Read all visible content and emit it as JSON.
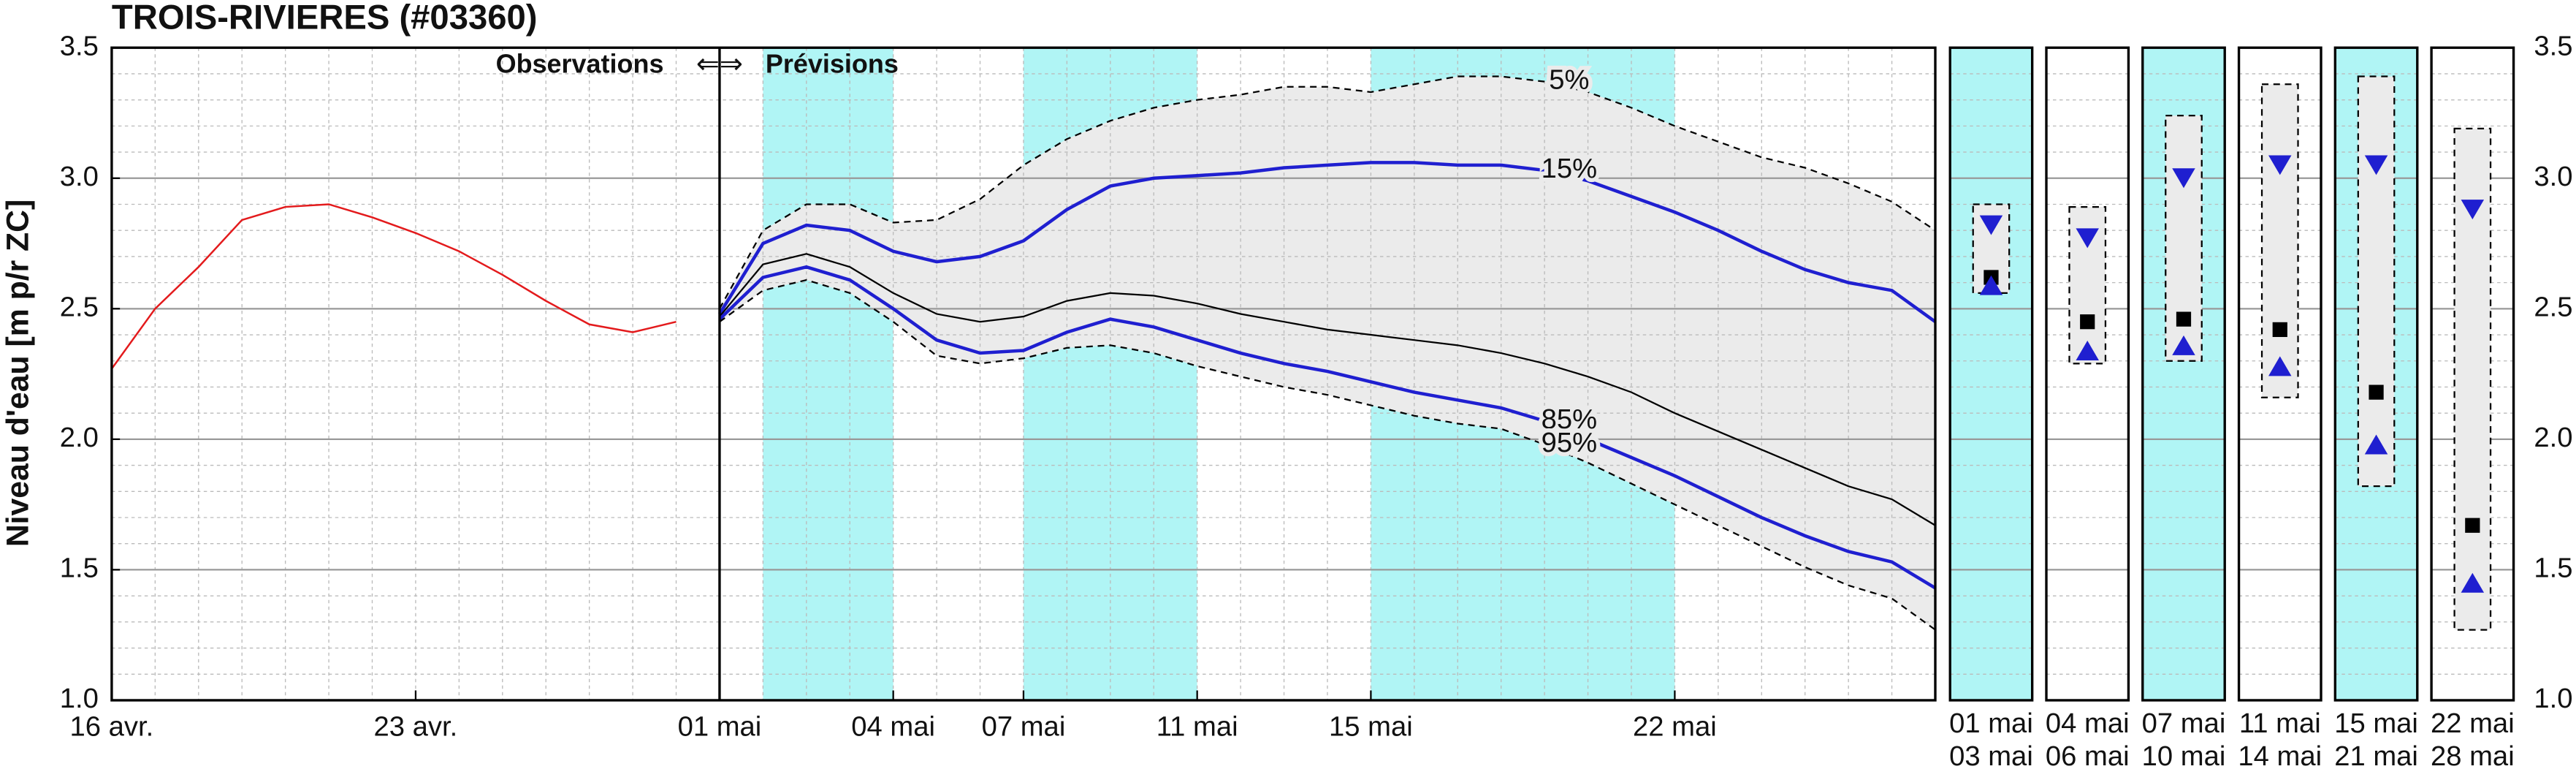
{
  "chart_data": {
    "type": "line",
    "title": "TROIS-RIVIERES (#03360)",
    "y_label": "Niveau d'eau [m p/r ZC]",
    "observations_label": "Observations",
    "arrows_label": "⇐⇒",
    "forecast_label": "Prévisions",
    "xlim": [
      0,
      42
    ],
    "xticks": [
      {
        "value": 0,
        "label": "16 avr."
      },
      {
        "value": 7,
        "label": "23 avr."
      },
      {
        "value": 14,
        "label": "01 mai"
      },
      {
        "value": 18,
        "label": "04 mai"
      },
      {
        "value": 21,
        "label": "07 mai"
      },
      {
        "value": 25,
        "label": "11 mai"
      },
      {
        "value": 29,
        "label": "15 mai"
      },
      {
        "value": 36,
        "label": "22 mai"
      }
    ],
    "ylim": [
      1.0,
      3.5
    ],
    "yticks": [
      {
        "value": 1,
        "label": "1.0"
      },
      1.5,
      {
        "value": 2,
        "label": "2.0"
      },
      2.5,
      {
        "value": 3,
        "label": "3.0"
      },
      3.5
    ],
    "grid": true,
    "forecast_start": 14,
    "shaded_color": "#b0f5f5",
    "band_color": "#ebebeb",
    "shaded_periods": [
      [
        15,
        18
      ],
      [
        21,
        25
      ],
      [
        29,
        36
      ]
    ],
    "series": [
      {
        "color": "#e31a1c",
        "dash": false,
        "x": [
          0,
          1,
          2,
          3,
          4,
          5,
          6,
          7,
          8,
          9,
          10,
          11,
          12,
          13
        ],
        "values": [
          2.27,
          2.5,
          2.66,
          2.84,
          2.89,
          2.9,
          2.85,
          2.79,
          2.72,
          2.63,
          2.53,
          2.44,
          2.41,
          2.45
        ]
      },
      {
        "name": "5%",
        "color": "#000000",
        "label_color": "#000000",
        "dash": true,
        "x": [
          14,
          15,
          16,
          17,
          18,
          19,
          20,
          21,
          22,
          23,
          24,
          25,
          26,
          27,
          28,
          29,
          30,
          31,
          32,
          33,
          34,
          35,
          36,
          37,
          38,
          39,
          40,
          41,
          42
        ],
        "values": [
          2.5,
          2.8,
          2.9,
          2.9,
          2.83,
          2.84,
          2.92,
          3.05,
          3.15,
          3.22,
          3.27,
          3.3,
          3.32,
          3.35,
          3.35,
          3.33,
          3.36,
          3.39,
          3.39,
          3.37,
          3.33,
          3.27,
          3.2,
          3.14,
          3.08,
          3.04,
          2.98,
          2.91,
          2.8
        ]
      },
      {
        "name": "15%",
        "color": "#1f1fd0",
        "label_color": "#1f1fd0",
        "dash": false,
        "x": [
          14,
          15,
          16,
          17,
          18,
          19,
          20,
          21,
          22,
          23,
          24,
          25,
          26,
          27,
          28,
          29,
          30,
          31,
          32,
          33,
          34,
          35,
          36,
          37,
          38,
          39,
          40,
          41,
          42
        ],
        "values": [
          2.48,
          2.75,
          2.82,
          2.8,
          2.72,
          2.68,
          2.7,
          2.76,
          2.88,
          2.97,
          3.0,
          3.01,
          3.02,
          3.04,
          3.05,
          3.06,
          3.06,
          3.05,
          3.05,
          3.03,
          2.99,
          2.93,
          2.87,
          2.8,
          2.72,
          2.65,
          2.6,
          2.57,
          2.45
        ]
      },
      {
        "color": "#000000",
        "dash": false,
        "x": [
          14,
          15,
          16,
          17,
          18,
          19,
          20,
          21,
          22,
          23,
          24,
          25,
          26,
          27,
          28,
          29,
          30,
          31,
          32,
          33,
          34,
          35,
          36,
          37,
          38,
          39,
          40,
          41,
          42
        ],
        "values": [
          2.47,
          2.67,
          2.71,
          2.66,
          2.56,
          2.48,
          2.45,
          2.47,
          2.53,
          2.56,
          2.55,
          2.52,
          2.48,
          2.45,
          2.42,
          2.4,
          2.38,
          2.36,
          2.33,
          2.29,
          2.24,
          2.18,
          2.1,
          2.03,
          1.96,
          1.89,
          1.82,
          1.77,
          1.67
        ]
      },
      {
        "name": "85%",
        "color": "#1f1fd0",
        "label_color": "#1f1fd0",
        "dash": false,
        "x": [
          14,
          15,
          16,
          17,
          18,
          19,
          20,
          21,
          22,
          23,
          24,
          25,
          26,
          27,
          28,
          29,
          30,
          31,
          32,
          33,
          34,
          35,
          36,
          37,
          38,
          39,
          40,
          41,
          42
        ],
        "values": [
          2.46,
          2.62,
          2.66,
          2.61,
          2.5,
          2.38,
          2.33,
          2.34,
          2.41,
          2.46,
          2.43,
          2.38,
          2.33,
          2.29,
          2.26,
          2.22,
          2.18,
          2.15,
          2.12,
          2.07,
          2.0,
          1.93,
          1.86,
          1.78,
          1.7,
          1.63,
          1.57,
          1.53,
          1.43
        ]
      },
      {
        "name": "95%",
        "color": "#000000",
        "label_color": "#000000",
        "dash": true,
        "x": [
          14,
          15,
          16,
          17,
          18,
          19,
          20,
          21,
          22,
          23,
          24,
          25,
          26,
          27,
          28,
          29,
          30,
          31,
          32,
          33,
          34,
          35,
          36,
          37,
          38,
          39,
          40,
          41,
          42
        ],
        "values": [
          2.45,
          2.57,
          2.61,
          2.56,
          2.45,
          2.32,
          2.29,
          2.31,
          2.35,
          2.36,
          2.33,
          2.28,
          2.24,
          2.2,
          2.17,
          2.13,
          2.09,
          2.06,
          2.04,
          1.98,
          1.91,
          1.83,
          1.75,
          1.67,
          1.59,
          1.51,
          1.44,
          1.39,
          1.27
        ]
      }
    ],
    "weekly": [
      {
        "start": "01 mai",
        "end": "03 mai",
        "shaded": true,
        "min": 2.56,
        "max": 2.9,
        "median": 2.62,
        "p15": 2.82,
        "p85": 2.59
      },
      {
        "start": "04 mai",
        "end": "06 mai",
        "shaded": false,
        "min": 2.29,
        "max": 2.89,
        "median": 2.45,
        "p15": 2.77,
        "p85": 2.34
      },
      {
        "start": "07 mai",
        "end": "10 mai",
        "shaded": true,
        "min": 2.3,
        "max": 3.24,
        "median": 2.46,
        "p15": 3.0,
        "p85": 2.36
      },
      {
        "start": "11 mai",
        "end": "14 mai",
        "shaded": false,
        "min": 2.16,
        "max": 3.36,
        "median": 2.42,
        "p15": 3.05,
        "p85": 2.28
      },
      {
        "start": "15 mai",
        "end": "21 mai",
        "shaded": true,
        "min": 1.82,
        "max": 3.39,
        "median": 2.18,
        "p15": 3.05,
        "p85": 1.98
      },
      {
        "start": "22 mai",
        "end": "28 mai",
        "shaded": false,
        "min": 1.27,
        "max": 3.19,
        "median": 1.67,
        "p15": 2.88,
        "p85": 1.45
      }
    ]
  }
}
